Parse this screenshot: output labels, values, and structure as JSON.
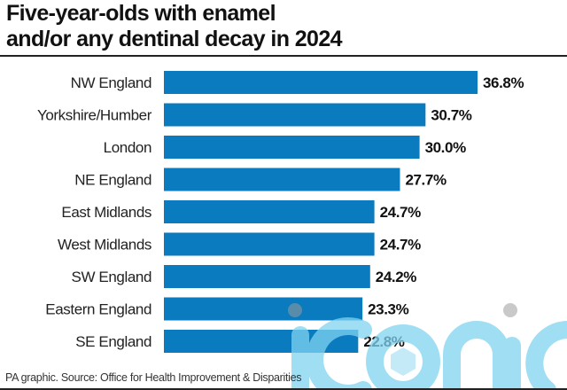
{
  "chart_data": {
    "type": "bar",
    "orientation": "horizontal",
    "title": "Five-year-olds with enamel and/or any dentinal decay in 2024",
    "title_lines": [
      "Five-year-olds with enamel",
      "and/or any dentinal decay in 2024"
    ],
    "categories": [
      "NW England",
      "Yorkshire/Humber",
      "London",
      "NE England",
      "East Midlands",
      "West Midlands",
      "SW England",
      "Eastern England",
      "SE England"
    ],
    "values": [
      36.8,
      30.7,
      30.0,
      27.7,
      24.7,
      24.7,
      24.2,
      23.3,
      22.8
    ],
    "value_labels": [
      "36.8%",
      "30.7%",
      "30.0%",
      "27.7%",
      "24.7%",
      "24.7%",
      "24.2%",
      "23.3%",
      "22.8%"
    ],
    "unit": "%",
    "xlabel": "",
    "ylabel": "",
    "xlim": [
      0,
      36.8
    ],
    "grid": false,
    "legend": "none",
    "bar_color": "#0a7bbf",
    "source": "PA graphic. Source: Office for Health Improvement & Disparities"
  },
  "watermark": {
    "text": "iconic",
    "color": "#7fd3f0"
  }
}
